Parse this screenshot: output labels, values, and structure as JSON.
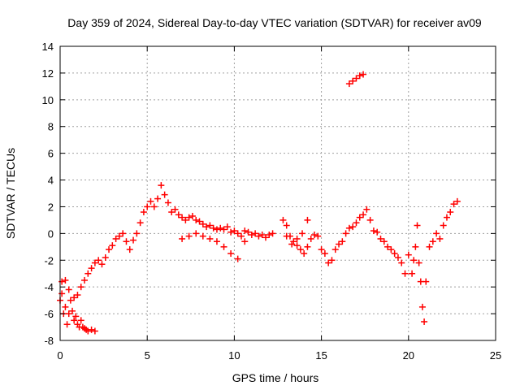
{
  "chart_data": {
    "type": "scatter",
    "title": "Day 359 of 2024, Sidereal Day-to-day VTEC variation (SDTVAR) for receiver av09",
    "xlabel": "GPS time / hours",
    "ylabel": "SDTVAR / TECUs",
    "xlim": [
      0,
      25
    ],
    "ylim": [
      -8,
      14
    ],
    "xticks": [
      0,
      5,
      10,
      15,
      20,
      25
    ],
    "yticks": [
      -8,
      -6,
      -4,
      -2,
      0,
      2,
      4,
      6,
      8,
      10,
      12,
      14
    ],
    "grid": true,
    "marker": "+",
    "series_color": "#ff0000",
    "series": [
      {
        "name": "SDTVAR",
        "x": [
          0.0,
          0.1,
          0.2,
          0.3,
          0.4,
          0.5,
          0.6,
          0.7,
          0.8,
          0.9,
          1.0,
          1.1,
          1.2,
          1.3,
          1.4,
          1.5,
          1.6,
          1.8,
          2.0,
          0.1,
          0.3,
          0.5,
          0.8,
          1.0,
          1.2,
          1.4,
          1.6,
          1.8,
          2.0,
          2.2,
          2.4,
          2.6,
          2.8,
          3.0,
          3.2,
          3.4,
          3.6,
          3.8,
          4.0,
          4.2,
          4.4,
          4.6,
          4.8,
          5.0,
          5.2,
          5.4,
          5.6,
          5.8,
          6.0,
          6.2,
          6.4,
          6.6,
          6.8,
          7.0,
          7.2,
          7.4,
          7.6,
          7.8,
          8.0,
          8.2,
          8.4,
          8.6,
          8.8,
          9.0,
          9.2,
          9.4,
          9.6,
          9.8,
          10.0,
          10.2,
          10.4,
          10.6,
          10.8,
          11.0,
          11.2,
          11.4,
          11.6,
          11.8,
          12.0,
          12.2,
          7.0,
          7.4,
          7.8,
          8.2,
          8.6,
          9.0,
          9.4,
          9.8,
          10.2,
          10.6,
          12.8,
          13.0,
          13.2,
          13.4,
          13.6,
          13.8,
          14.0,
          14.2,
          14.4,
          14.6,
          14.8,
          15.0,
          15.2,
          15.4,
          15.6,
          15.8,
          16.0,
          16.2,
          16.4,
          16.6,
          16.8,
          17.0,
          17.2,
          17.4,
          17.6,
          17.8,
          18.0,
          18.2,
          18.4,
          18.6,
          18.8,
          19.0,
          19.2,
          19.4,
          19.6,
          19.8,
          13.0,
          13.3,
          13.6,
          13.9,
          14.2,
          20.0,
          20.2,
          20.3,
          20.4,
          20.5,
          20.6,
          20.7,
          20.8,
          20.9,
          21.0,
          21.2,
          21.4,
          21.6,
          21.8,
          22.0,
          22.2,
          22.4,
          22.6,
          22.8,
          16.6,
          16.8,
          17.0,
          17.2,
          17.4
        ],
        "y": [
          -5.0,
          -4.5,
          -6.0,
          -5.5,
          -6.8,
          -6.0,
          -5.0,
          -5.8,
          -6.5,
          -6.2,
          -6.8,
          -7.0,
          -6.5,
          -7.0,
          -7.1,
          -7.2,
          -7.3,
          -7.2,
          -7.3,
          -3.6,
          -3.5,
          -4.2,
          -4.8,
          -4.6,
          -4.0,
          -3.5,
          -3.0,
          -2.6,
          -2.2,
          -2.0,
          -2.3,
          -1.8,
          -1.2,
          -0.9,
          -0.4,
          -0.2,
          0.0,
          -0.6,
          -1.2,
          -0.5,
          0.0,
          0.8,
          1.6,
          2.0,
          2.4,
          2.0,
          2.6,
          3.6,
          2.9,
          2.3,
          1.6,
          1.8,
          1.4,
          1.2,
          1.0,
          1.2,
          1.3,
          1.0,
          0.9,
          0.7,
          0.5,
          0.6,
          0.4,
          0.3,
          0.4,
          0.3,
          0.5,
          0.1,
          0.2,
          0.0,
          -0.2,
          0.2,
          0.1,
          -0.1,
          0.0,
          -0.2,
          -0.1,
          -0.3,
          -0.1,
          0.0,
          -0.4,
          -0.2,
          0.0,
          -0.2,
          -0.4,
          -0.6,
          -1.0,
          -1.5,
          -1.9,
          -0.6,
          1.0,
          0.6,
          -0.2,
          -0.6,
          -0.9,
          -1.2,
          -1.5,
          -1.0,
          -0.4,
          -0.1,
          -0.2,
          -1.2,
          -1.5,
          -2.2,
          -2.0,
          -1.2,
          -0.8,
          -0.6,
          0.0,
          0.4,
          0.5,
          0.8,
          1.2,
          1.4,
          1.8,
          1.0,
          0.2,
          0.1,
          -0.4,
          -0.6,
          -1.0,
          -1.2,
          -1.5,
          -1.8,
          -2.2,
          -3.0,
          -0.2,
          -0.8,
          -0.4,
          0.0,
          1.0,
          -1.6,
          -3.0,
          -2.0,
          -1.0,
          0.6,
          -2.2,
          -3.6,
          -5.5,
          -6.6,
          -3.6,
          -1.0,
          -0.6,
          0.0,
          -0.4,
          0.6,
          1.2,
          1.6,
          2.2,
          2.4,
          11.2,
          11.4,
          11.6,
          11.8,
          11.9
        ]
      }
    ]
  }
}
